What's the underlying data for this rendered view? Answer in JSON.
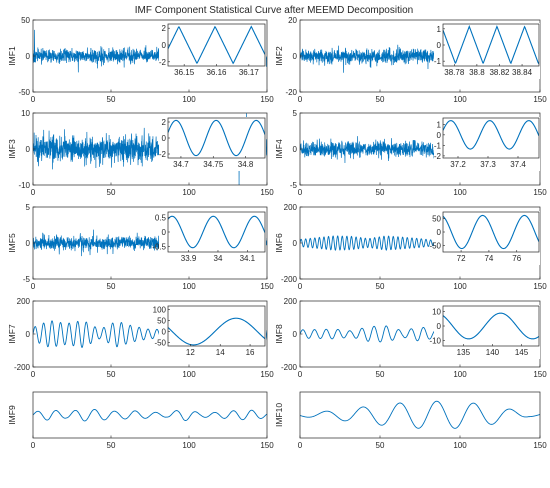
{
  "title": "IMF Component Statistical Curve after MEEMD Decomposition",
  "colors": {
    "signal": "#0072BD",
    "axis": "#262626",
    "background": "#ffffff"
  },
  "chart_data": [
    {
      "type": "line",
      "ylabel": "IMF1",
      "xlim": [
        0,
        150
      ],
      "ylim": [
        -50,
        50
      ],
      "xticks": [
        "0",
        "50",
        "100",
        "150"
      ],
      "yticks": [
        "50",
        "0",
        "-50"
      ],
      "signal": {
        "kind": "noise",
        "amp": 9,
        "spikes": 16
      },
      "inset": {
        "xlim": [
          36.145,
          36.175
        ],
        "ylim": [
          -2.5,
          2.5
        ],
        "xticks": [
          "36.15",
          "36.16",
          "36.17"
        ],
        "yticks": [
          "2",
          "0",
          "-2"
        ],
        "wave": "triangle",
        "period": 0.0112,
        "amp": 2.2,
        "phase": 0.2
      }
    },
    {
      "type": "line",
      "ylabel": "IMF2",
      "xlim": [
        0,
        150
      ],
      "ylim": [
        -20,
        20
      ],
      "xticks": [
        "0",
        "50",
        "100",
        "150"
      ],
      "yticks": [
        "20",
        "0",
        "-20"
      ],
      "signal": {
        "kind": "noise",
        "amp": 3.5,
        "spikes": 9
      },
      "inset": {
        "xlim": [
          38.77,
          38.855
        ],
        "ylim": [
          -1.3,
          1.3
        ],
        "xticks": [
          "38.78",
          "38.8",
          "38.82",
          "38.84"
        ],
        "yticks": [
          "1",
          "0",
          "-1"
        ],
        "wave": "triangle",
        "period": 0.0245,
        "amp": 1.15,
        "phase": 0.55
      }
    },
    {
      "type": "line",
      "ylabel": "IMF3",
      "xlim": [
        0,
        150
      ],
      "ylim": [
        -10,
        10
      ],
      "xticks": [
        "0",
        "50",
        "100",
        "150"
      ],
      "yticks": [
        "10",
        "0",
        "-10"
      ],
      "signal": {
        "kind": "noise",
        "amp": 3.2,
        "spikes": 10
      },
      "inset": {
        "xlim": [
          34.68,
          34.83
        ],
        "ylim": [
          -2.5,
          2.5
        ],
        "xticks": [
          "34.7",
          "34.75",
          "34.8"
        ],
        "yticks": [
          "2",
          "0",
          "-2"
        ],
        "wave": "sine",
        "period": 0.062,
        "amp": 2.2,
        "phase": 0.05
      }
    },
    {
      "type": "line",
      "ylabel": "IMF4",
      "xlim": [
        0,
        150
      ],
      "ylim": [
        -5,
        5
      ],
      "xticks": [
        "0",
        "50",
        "100",
        "150"
      ],
      "yticks": [
        "5",
        "0",
        "-5"
      ],
      "signal": {
        "kind": "noise",
        "amp": 1.0,
        "spikes": 7
      },
      "inset": {
        "xlim": [
          37.15,
          37.47
        ],
        "ylim": [
          -2.2,
          1.6
        ],
        "xticks": [
          "37.2",
          "37.3",
          "37.4"
        ],
        "yticks": [
          "1",
          "0",
          "-1",
          "-2"
        ],
        "wave": "sine",
        "period": 0.13,
        "amp": 1.35,
        "phase": 0.05
      }
    },
    {
      "type": "line",
      "ylabel": "IMF5",
      "xlim": [
        0,
        150
      ],
      "ylim": [
        -5,
        5
      ],
      "xticks": [
        "0",
        "50",
        "100",
        "150"
      ],
      "yticks": [
        "5",
        "0",
        "-5"
      ],
      "signal": {
        "kind": "noise",
        "amp": 0.9,
        "spikes": 10
      },
      "inset": {
        "xlim": [
          33.83,
          34.16
        ],
        "ylim": [
          -0.7,
          0.7
        ],
        "xticks": [
          "33.9",
          "34",
          "34.1"
        ],
        "yticks": [
          "0.5",
          "0",
          "-0.5"
        ],
        "wave": "sine",
        "period": 0.14,
        "amp": 0.55,
        "phase": 0.15
      }
    },
    {
      "type": "line",
      "ylabel": "IMF6",
      "xlim": [
        0,
        150
      ],
      "ylim": [
        -200,
        200
      ],
      "xticks": [
        "0",
        "50",
        "100",
        "150"
      ],
      "yticks": [
        "200",
        "0",
        "-200"
      ],
      "signal": {
        "kind": "wave",
        "amp": 35,
        "cycles": 52,
        "seed": 3
      },
      "inset": {
        "xlim": [
          70.7,
          77.6
        ],
        "ylim": [
          -75,
          75
        ],
        "xticks": [
          "72",
          "74",
          "76"
        ],
        "yticks": [
          "50",
          "0",
          "-50"
        ],
        "wave": "sine",
        "period": 3.0,
        "amp": 62,
        "phase": 0.3
      }
    },
    {
      "type": "line",
      "ylabel": "IMF7",
      "xlim": [
        0,
        150
      ],
      "ylim": [
        -200,
        200
      ],
      "xticks": [
        "0",
        "50",
        "100",
        "150"
      ],
      "yticks": [
        "200",
        "0",
        "-200"
      ],
      "signal": {
        "kind": "wave",
        "amp": 70,
        "cycles": 27,
        "seed": 7
      },
      "inset": {
        "xlim": [
          10.5,
          17.0
        ],
        "ylim": [
          -65,
          115
        ],
        "xticks": [
          "12",
          "14",
          "16"
        ],
        "yticks": [
          "100",
          "50",
          "0",
          "-50"
        ],
        "wave": "sine",
        "period": 5.7,
        "amp": 60,
        "phase": 0.45
      }
    },
    {
      "type": "line",
      "ylabel": "IMF8",
      "xlim": [
        0,
        150
      ],
      "ylim": [
        -200,
        200
      ],
      "xticks": [
        "0",
        "50",
        "100",
        "150"
      ],
      "yticks": [
        "200",
        "0",
        "-200"
      ],
      "signal": {
        "kind": "wave",
        "amp": 45,
        "cycles": 20,
        "seed": 11
      },
      "inset": {
        "xlim": [
          131.5,
          148.0
        ],
        "ylim": [
          -14,
          14
        ],
        "xticks": [
          "135",
          "140",
          "145"
        ],
        "yticks": [
          "10",
          "0",
          "-10"
        ],
        "wave": "sine",
        "period": 11.0,
        "amp": 9,
        "phase": 0.35
      }
    },
    {
      "type": "line",
      "ylabel": "IMF9",
      "xlim": [
        0,
        150
      ],
      "ylim": [
        -60,
        60
      ],
      "xticks": [
        "0",
        "50",
        "100",
        "150"
      ],
      "yticks": [],
      "signal": {
        "kind": "wave",
        "amp": 14,
        "cycles": 12,
        "seed": 5
      }
    },
    {
      "type": "line",
      "ylabel": "IMF10",
      "xlim": [
        0,
        150
      ],
      "ylim": [
        -45,
        45
      ],
      "xticks": [
        "0",
        "50",
        "100",
        "150"
      ],
      "yticks": [],
      "signal": {
        "kind": "growing",
        "amp": 40,
        "cycles": 6.5
      }
    }
  ]
}
